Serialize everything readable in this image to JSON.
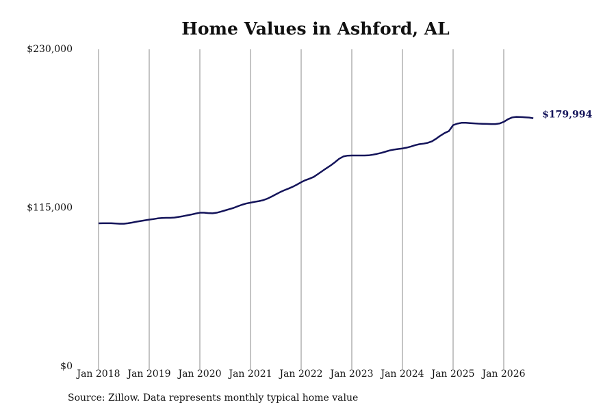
{
  "chart_data": {
    "type": "line",
    "title": "Home Values in Ashford, AL",
    "source": "Source: Zillow. Data represents monthly typical home value",
    "x": [
      "2018-01",
      "2018-02",
      "2018-03",
      "2018-04",
      "2018-05",
      "2018-06",
      "2018-07",
      "2018-08",
      "2018-09",
      "2018-10",
      "2018-11",
      "2018-12",
      "2019-01",
      "2019-02",
      "2019-03",
      "2019-04",
      "2019-05",
      "2019-06",
      "2019-07",
      "2019-08",
      "2019-09",
      "2019-10",
      "2019-11",
      "2019-12",
      "2020-01",
      "2020-02",
      "2020-03",
      "2020-04",
      "2020-05",
      "2020-06",
      "2020-07",
      "2020-08",
      "2020-09",
      "2020-10",
      "2020-11",
      "2020-12",
      "2021-01",
      "2021-02",
      "2021-03",
      "2021-04",
      "2021-05",
      "2021-06",
      "2021-07",
      "2021-08",
      "2021-09",
      "2021-10",
      "2021-11",
      "2021-12",
      "2022-01",
      "2022-02",
      "2022-03",
      "2022-04",
      "2022-05",
      "2022-06",
      "2022-07",
      "2022-08",
      "2022-09",
      "2022-10",
      "2022-11",
      "2022-12",
      "2023-01",
      "2023-02",
      "2023-03",
      "2023-04",
      "2023-05",
      "2023-06",
      "2023-07",
      "2023-08",
      "2023-09",
      "2023-10",
      "2023-11",
      "2023-12",
      "2024-01",
      "2024-02",
      "2024-03",
      "2024-04",
      "2024-05",
      "2024-06",
      "2024-07",
      "2024-08",
      "2024-09",
      "2024-10",
      "2024-11",
      "2024-12",
      "2025-01",
      "2025-02",
      "2025-03",
      "2025-04",
      "2025-05",
      "2025-06",
      "2025-07",
      "2025-08",
      "2025-09",
      "2025-10",
      "2025-11",
      "2025-12",
      "2026-01",
      "2026-02",
      "2026-03",
      "2026-04",
      "2026-05",
      "2026-06",
      "2026-07",
      "2026-08"
    ],
    "series": [
      {
        "color": "#14145a",
        "values": [
          103800,
          103900,
          103900,
          103900,
          103700,
          103500,
          103500,
          103900,
          104400,
          105000,
          105500,
          106000,
          106500,
          106900,
          107400,
          107700,
          107800,
          107800,
          108000,
          108500,
          109000,
          109600,
          110200,
          110900,
          111500,
          111500,
          111200,
          111100,
          111500,
          112300,
          113200,
          114100,
          115000,
          116200,
          117300,
          118200,
          118800,
          119400,
          119900,
          120600,
          121700,
          123200,
          124800,
          126400,
          127800,
          129000,
          130300,
          131900,
          133600,
          135100,
          136200,
          137500,
          139600,
          141700,
          143800,
          145800,
          148100,
          150600,
          152300,
          152900,
          153000,
          153000,
          153000,
          153000,
          153100,
          153600,
          154200,
          154900,
          155800,
          156700,
          157300,
          157700,
          158100,
          158700,
          159500,
          160500,
          161200,
          161600,
          162200,
          163300,
          165200,
          167400,
          169300,
          170700,
          175000,
          176100,
          176700,
          176700,
          176500,
          176300,
          176100,
          176000,
          175900,
          175800,
          175800,
          176200,
          177400,
          179300,
          180600,
          181000,
          180900,
          180700,
          180500,
          179994
        ],
        "value_labels": [
          null,
          null,
          null,
          null,
          null,
          null,
          null,
          null,
          null,
          null,
          null,
          null,
          null,
          null,
          null,
          null,
          null,
          null,
          null,
          null,
          null,
          null,
          null,
          null,
          null,
          null,
          null,
          null,
          null,
          null,
          null,
          null,
          null,
          null,
          null,
          null,
          null,
          null,
          null,
          null,
          null,
          null,
          null,
          null,
          null,
          null,
          null,
          null,
          null,
          null,
          null,
          null,
          null,
          null,
          null,
          null,
          null,
          null,
          null,
          null,
          null,
          null,
          null,
          null,
          null,
          null,
          null,
          null,
          null,
          null,
          null,
          null,
          null,
          null,
          null,
          null,
          null,
          null,
          null,
          null,
          null,
          null,
          null,
          null,
          null,
          null,
          null,
          null,
          null,
          null,
          null,
          null,
          null,
          null,
          null,
          null,
          null,
          null,
          null,
          null,
          null,
          null,
          null,
          "$179,994"
        ]
      }
    ],
    "ylim": [
      0,
      230000
    ],
    "yticks": [
      {
        "value": 0,
        "label": "$0"
      },
      {
        "value": 115000,
        "label": "$115,000"
      },
      {
        "value": 230000,
        "label": "$230,000"
      }
    ],
    "xticks": [
      {
        "value": "2018-01",
        "label": "Jan 2018"
      },
      {
        "value": "2019-01",
        "label": "Jan 2019"
      },
      {
        "value": "2020-01",
        "label": "Jan 2020"
      },
      {
        "value": "2021-01",
        "label": "Jan 2021"
      },
      {
        "value": "2022-01",
        "label": "Jan 2022"
      },
      {
        "value": "2023-01",
        "label": "Jan 2023"
      },
      {
        "value": "2024-01",
        "label": "Jan 2024"
      },
      {
        "value": "2025-01",
        "label": "Jan 2025"
      },
      {
        "value": "2026-01",
        "label": "Jan 2026"
      }
    ],
    "grid": "x"
  }
}
